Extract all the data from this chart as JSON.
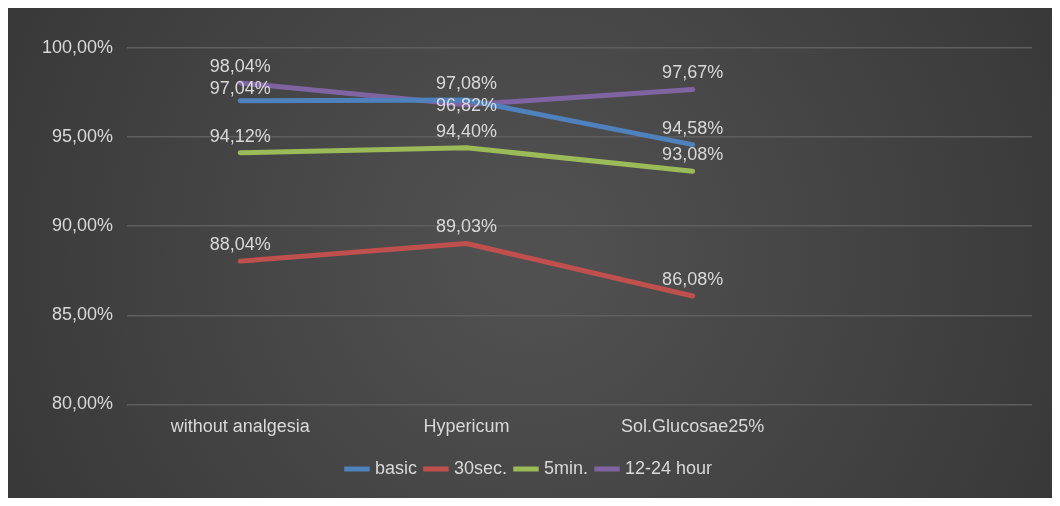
{
  "chart_data": {
    "type": "line",
    "categories": [
      "without analgesia",
      "Hypericum",
      "Sol.Glucosae25%",
      null
    ],
    "series": [
      {
        "name": "basic",
        "color": "#4f81bd",
        "values": [
          97.04,
          97.08,
          94.58,
          null
        ],
        "value_labels": [
          "97,04%",
          "97,08%",
          "94,58%",
          null
        ]
      },
      {
        "name": "30sec.",
        "color": "#c0504d",
        "values": [
          88.04,
          89.03,
          86.08,
          null
        ],
        "value_labels": [
          "88,04%",
          "89,03%",
          "86,08%",
          null
        ]
      },
      {
        "name": "5min.",
        "color": "#9bbb59",
        "values": [
          94.12,
          94.4,
          93.08,
          null
        ],
        "value_labels": [
          "94,12%",
          "94,40%",
          "93,08%",
          null
        ]
      },
      {
        "name": "12-24 hour",
        "color": "#8064a2",
        "values": [
          98.04,
          96.82,
          97.67,
          null
        ],
        "value_labels": [
          "98,04%",
          "96,82%",
          "97,67%",
          null
        ]
      }
    ],
    "ylim": [
      80,
      100
    ],
    "yticks": [
      {
        "value": 80,
        "label": "80,00%"
      },
      {
        "value": 85,
        "label": "85,00%"
      },
      {
        "value": 90,
        "label": "90,00%"
      },
      {
        "value": 95,
        "label": "95,00%"
      },
      {
        "value": 100,
        "label": "100,00%"
      }
    ],
    "grid": "y",
    "legend": "bottom",
    "marker": "none",
    "line_style": "solid"
  }
}
